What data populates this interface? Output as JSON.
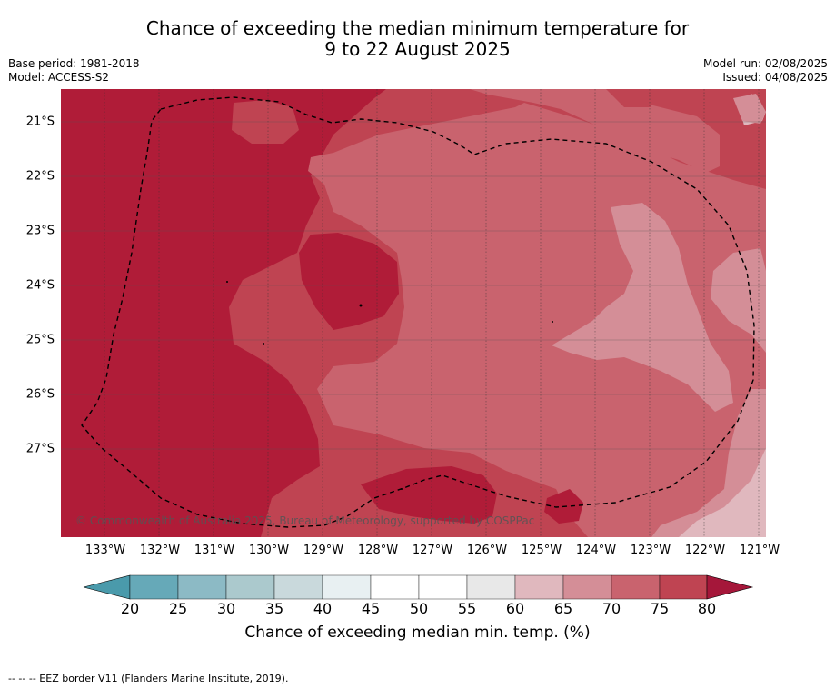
{
  "title": {
    "line1": "Chance of exceeding the median minimum temperature for",
    "line2": "9 to 22 August 2025"
  },
  "meta": {
    "base_period": "Base period: 1981-2018",
    "model": "Model: ACCESS-S2",
    "model_run": "Model run: 02/08/2025",
    "issued": "Issued: 04/08/2025"
  },
  "map": {
    "lon_labels": [
      "133°W",
      "132°W",
      "131°W",
      "130°W",
      "129°W",
      "128°W",
      "127°W",
      "126°W",
      "125°W",
      "124°W",
      "123°W",
      "122°W",
      "121°W"
    ],
    "lat_labels": [
      "21°S",
      "22°S",
      "23°S",
      "24°S",
      "25°S",
      "26°S",
      "27°S"
    ],
    "copyright": "© Commonwealth of Australia 2025, Bureau of Meteorology, supported by COSPPac"
  },
  "colors": {
    "c20": "#66a9b8",
    "c25": "#8cbac5",
    "c30": "#abc9cd",
    "c35": "#c9d9dc",
    "c40": "#e8f0f2",
    "c45": "#ffffff",
    "c50": "#ffffff",
    "c55": "#e8e8e8",
    "c60": "#e0b8be",
    "c65": "#d48e97",
    "c70": "#c9636e",
    "c75": "#bf4452",
    "c80": "#b01c38",
    "low_ext": "#4a9aab",
    "high_ext": "#a5173a"
  },
  "colorbar": {
    "ticks": [
      "20",
      "25",
      "30",
      "35",
      "40",
      "45",
      "50",
      "55",
      "60",
      "65",
      "70",
      "75",
      "80"
    ],
    "title": "Chance of exceeding median min. temp. (%)"
  },
  "footer": "--  --  -- EEZ border V11 (Flanders Marine Institute, 2019)."
}
